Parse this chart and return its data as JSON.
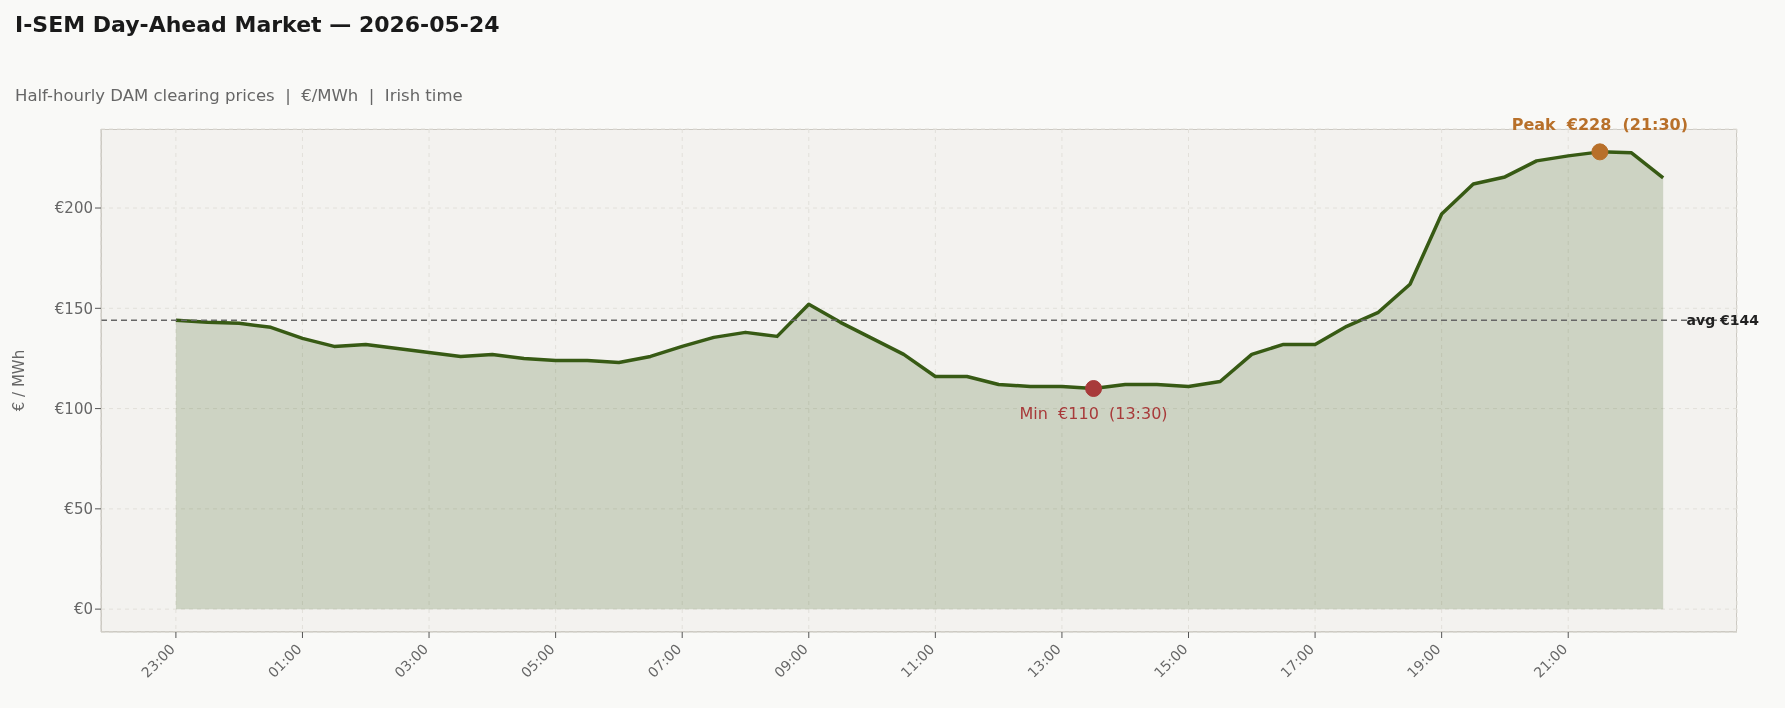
{
  "chart_data": {
    "type": "area",
    "title": "I-SEM Day-Ahead Market — 2026-05-24",
    "subtitle": "Half-hourly DAM clearing prices  |  €/MWh  |  Irish time",
    "ylabel": "€ / MWh",
    "x": [
      "2026-05-23T23:00",
      "2026-05-23T23:30",
      "2026-05-24T00:00",
      "2026-05-24T00:30",
      "2026-05-24T01:00",
      "2026-05-24T01:30",
      "2026-05-24T02:00",
      "2026-05-24T02:30",
      "2026-05-24T03:00",
      "2026-05-24T03:30",
      "2026-05-24T04:00",
      "2026-05-24T04:30",
      "2026-05-24T05:00",
      "2026-05-24T05:30",
      "2026-05-24T06:00",
      "2026-05-24T06:30",
      "2026-05-24T07:00",
      "2026-05-24T07:30",
      "2026-05-24T08:00",
      "2026-05-24T08:30",
      "2026-05-24T09:00",
      "2026-05-24T09:30",
      "2026-05-24T10:00",
      "2026-05-24T10:30",
      "2026-05-24T11:00",
      "2026-05-24T11:30",
      "2026-05-24T12:00",
      "2026-05-24T12:30",
      "2026-05-24T13:00",
      "2026-05-24T13:30",
      "2026-05-24T14:00",
      "2026-05-24T14:30",
      "2026-05-24T15:00",
      "2026-05-24T15:30",
      "2026-05-24T16:00",
      "2026-05-24T16:30",
      "2026-05-24T17:00",
      "2026-05-24T17:30",
      "2026-05-24T18:00",
      "2026-05-24T18:30",
      "2026-05-24T19:00",
      "2026-05-24T19:30",
      "2026-05-24T20:00",
      "2026-05-24T20:30",
      "2026-05-24T21:00",
      "2026-05-24T21:30",
      "2026-05-24T22:00",
      "2026-05-24T22:30"
    ],
    "series": [
      {
        "color": "#375a14",
        "values": [
          144,
          143,
          142.5,
          140.5,
          135,
          131,
          132,
          130,
          128,
          126,
          127,
          125,
          124,
          124,
          123,
          126,
          131,
          135.5,
          138,
          136,
          152,
          143,
          135,
          127,
          116,
          116,
          112,
          111,
          111,
          110,
          112,
          112,
          111,
          113.5,
          127,
          132,
          132,
          141,
          148,
          162,
          197,
          212,
          215.5,
          223.5,
          226,
          228,
          227.5,
          215
        ]
      }
    ],
    "xlim": [
      "2026-05-23T21:49",
      "2026-05-24T23:40"
    ],
    "xticks": [
      {
        "value": "2026-05-23T23:00",
        "label": "23:00"
      },
      {
        "value": "2026-05-24T01:00",
        "label": "01:00"
      },
      {
        "value": "2026-05-24T03:00",
        "label": "03:00"
      },
      {
        "value": "2026-05-24T05:00",
        "label": "05:00"
      },
      {
        "value": "2026-05-24T07:00",
        "label": "07:00"
      },
      {
        "value": "2026-05-24T09:00",
        "label": "09:00"
      },
      {
        "value": "2026-05-24T11:00",
        "label": "11:00"
      },
      {
        "value": "2026-05-24T13:00",
        "label": "13:00"
      },
      {
        "value": "2026-05-24T15:00",
        "label": "15:00"
      },
      {
        "value": "2026-05-24T17:00",
        "label": "17:00"
      },
      {
        "value": "2026-05-24T19:00",
        "label": "19:00"
      },
      {
        "value": "2026-05-24T21:00",
        "label": "21:00"
      }
    ],
    "ylim": [
      -11.4,
      239.4
    ],
    "yticks": [
      {
        "value": 0,
        "label": "€0"
      },
      {
        "value": 50,
        "label": "€50"
      },
      {
        "value": 100,
        "label": "€100"
      },
      {
        "value": 150,
        "label": "€150"
      },
      {
        "value": 200,
        "label": "€200"
      }
    ],
    "ref_lines": [
      {
        "axis": "y",
        "value": 144,
        "label": "avg €144",
        "color": "#666666",
        "line_style": "dashed"
      }
    ],
    "annotations": [
      {
        "text": "Min  €110  (13:30)",
        "x": "2026-05-24T13:30",
        "y": 110
      },
      {
        "text": "Peak  €228  (21:30)",
        "x": "2026-05-24T21:30",
        "y": 228
      }
    ],
    "grid": true
  }
}
